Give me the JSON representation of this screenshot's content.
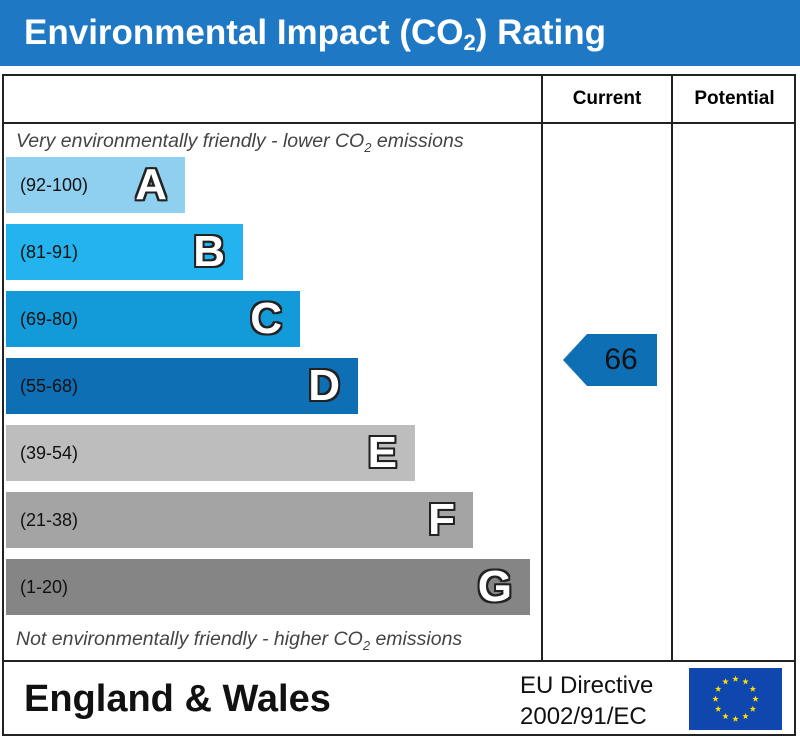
{
  "header": {
    "title_prefix": "Environmental Impact (CO",
    "title_sub": "2",
    "title_suffix": ") Rating"
  },
  "columns": {
    "current": "Current",
    "potential": "Potential"
  },
  "notes": {
    "top_prefix": "Very environmentally friendly - lower CO",
    "top_sub": "2",
    "top_suffix": " emissions",
    "bottom_prefix": "Not environmentally friendly - higher CO",
    "bottom_sub": "2",
    "bottom_suffix": " emissions"
  },
  "chart_data": {
    "type": "bar",
    "categories": [
      "A",
      "B",
      "C",
      "D",
      "E",
      "F",
      "G"
    ],
    "bands": [
      {
        "letter": "A",
        "range": "(92-100)",
        "min": 92,
        "max": 100,
        "color": "#8fd0f0"
      },
      {
        "letter": "B",
        "range": "(81-91)",
        "min": 81,
        "max": 91,
        "color": "#23b4ef"
      },
      {
        "letter": "C",
        "range": "(69-80)",
        "min": 69,
        "max": 80,
        "color": "#139bd9"
      },
      {
        "letter": "D",
        "range": "(55-68)",
        "min": 55,
        "max": 68,
        "color": "#0e6fb5"
      },
      {
        "letter": "E",
        "range": "(39-54)",
        "min": 39,
        "max": 54,
        "color": "#bdbdbd"
      },
      {
        "letter": "F",
        "range": "(21-38)",
        "min": 21,
        "max": 38,
        "color": "#a4a4a4"
      },
      {
        "letter": "G",
        "range": "(1-20)",
        "min": 1,
        "max": 20,
        "color": "#858585"
      }
    ],
    "current": {
      "value": "66",
      "band": "D",
      "color": "#0e6fb5"
    },
    "potential": {
      "value": ""
    }
  },
  "footer": {
    "region": "England & Wales",
    "directive_line1": "EU Directive",
    "directive_line2": "2002/91/EC"
  },
  "colors": {
    "title_bar": "#1f78c4",
    "flag_blue": "#0f47af",
    "flag_star": "#ffdd00"
  }
}
